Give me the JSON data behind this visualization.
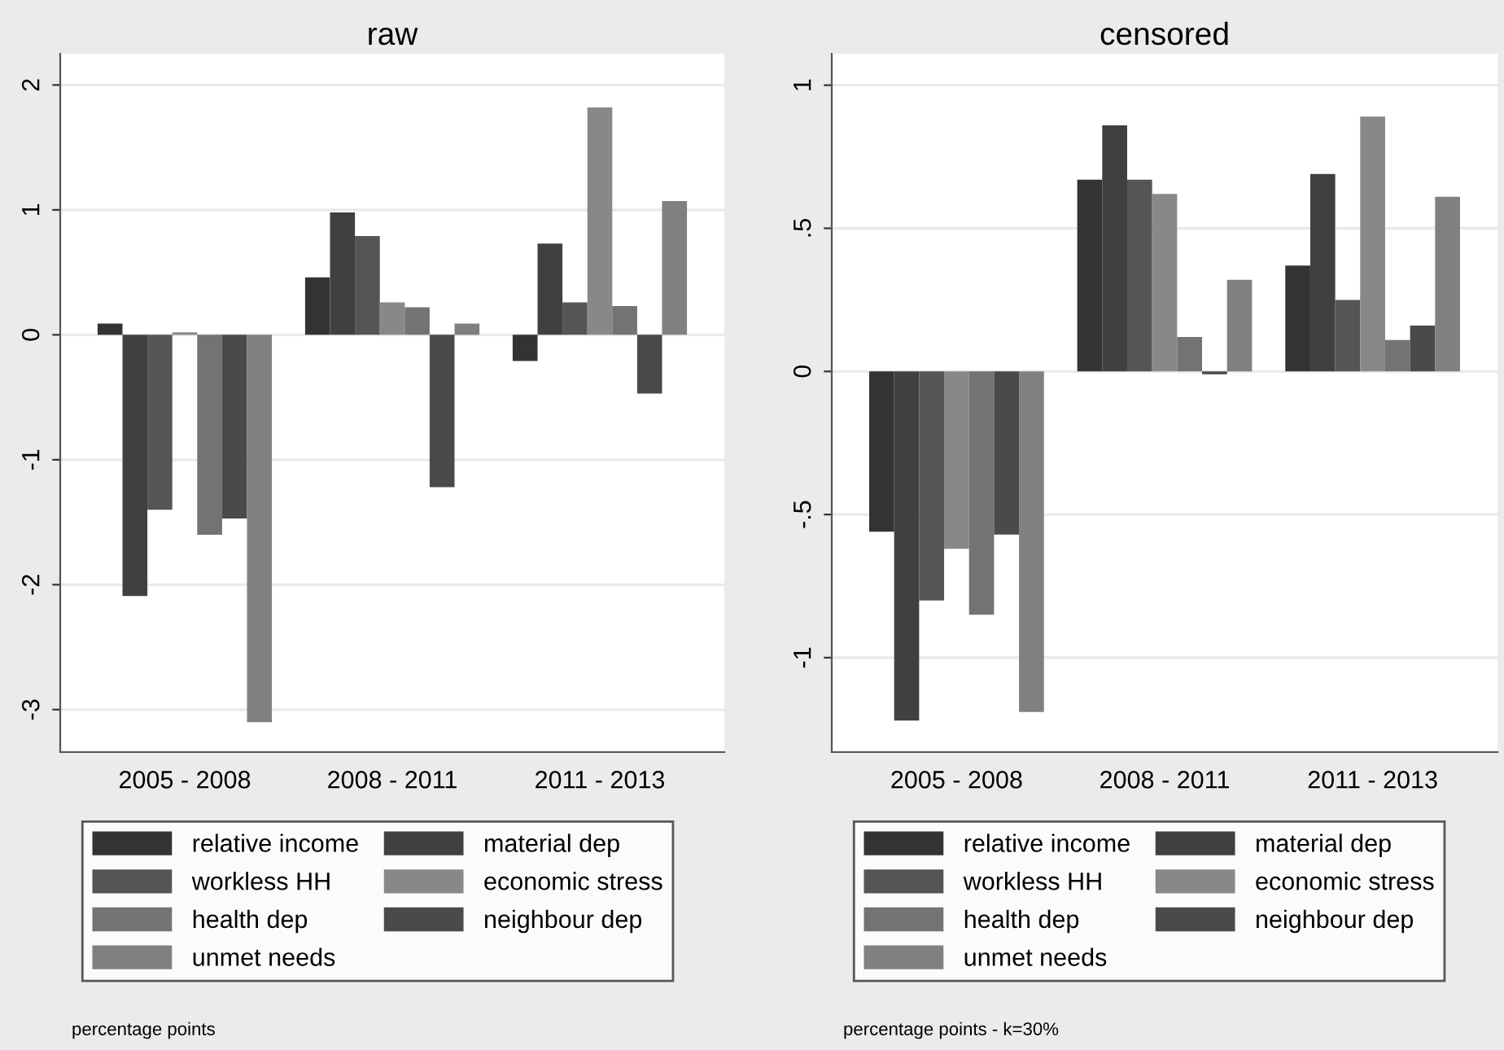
{
  "chart_data": [
    {
      "type": "bar",
      "title": "raw",
      "categories": [
        "2005 - 2008",
        "2008 - 2011",
        "2011 - 2013"
      ],
      "series": [
        {
          "name": "relative income",
          "color": "#333333",
          "values": [
            0.09,
            0.46,
            -0.21
          ]
        },
        {
          "name": "material dep",
          "color": "#404040",
          "values": [
            -2.09,
            0.98,
            0.73
          ]
        },
        {
          "name": "workless HH",
          "color": "#555555",
          "values": [
            -1.4,
            0.79,
            0.26
          ]
        },
        {
          "name": "economic stress",
          "color": "#888888",
          "values": [
            0.02,
            0.26,
            1.82
          ]
        },
        {
          "name": "health dep",
          "color": "#737373",
          "values": [
            -1.6,
            0.22,
            0.23
          ]
        },
        {
          "name": "neighbour dep",
          "color": "#4a4a4a",
          "values": [
            -1.47,
            -1.22,
            -0.47
          ]
        },
        {
          "name": "unmet needs",
          "color": "#808080",
          "values": [
            -3.1,
            0.09,
            1.07
          ]
        }
      ],
      "ylim": [
        -3.34,
        2.25
      ],
      "yticks": [
        -3,
        -2,
        -1,
        0,
        1,
        2
      ],
      "grid": "y",
      "legend": "bottom",
      "annotations": [
        "percentage points"
      ]
    },
    {
      "type": "bar",
      "title": "censored",
      "categories": [
        "2005 - 2008",
        "2008 - 2011",
        "2011 - 2013"
      ],
      "series": [
        {
          "name": "relative income",
          "color": "#333333",
          "values": [
            -0.56,
            0.67,
            0.37
          ]
        },
        {
          "name": "material dep",
          "color": "#404040",
          "values": [
            -1.22,
            0.86,
            0.69
          ]
        },
        {
          "name": "workless HH",
          "color": "#555555",
          "values": [
            -0.8,
            0.67,
            0.25
          ]
        },
        {
          "name": "economic stress",
          "color": "#888888",
          "values": [
            -0.62,
            0.62,
            0.89
          ]
        },
        {
          "name": "health dep",
          "color": "#737373",
          "values": [
            -0.85,
            0.12,
            0.11
          ]
        },
        {
          "name": "neighbour dep",
          "color": "#4a4a4a",
          "values": [
            -0.57,
            -0.01,
            0.16
          ]
        },
        {
          "name": "unmet needs",
          "color": "#808080",
          "values": [
            -1.19,
            0.32,
            0.61
          ]
        }
      ],
      "ylim": [
        -1.33,
        1.11
      ],
      "yticks": [
        {
          "value": -1,
          "label": "-1"
        },
        {
          "value": -0.5,
          "label": "-.5"
        },
        0,
        {
          "value": 0.5,
          "label": ".5"
        },
        1
      ],
      "grid": "y",
      "legend": "bottom",
      "annotations": [
        "percentage points - k=30%"
      ]
    }
  ]
}
